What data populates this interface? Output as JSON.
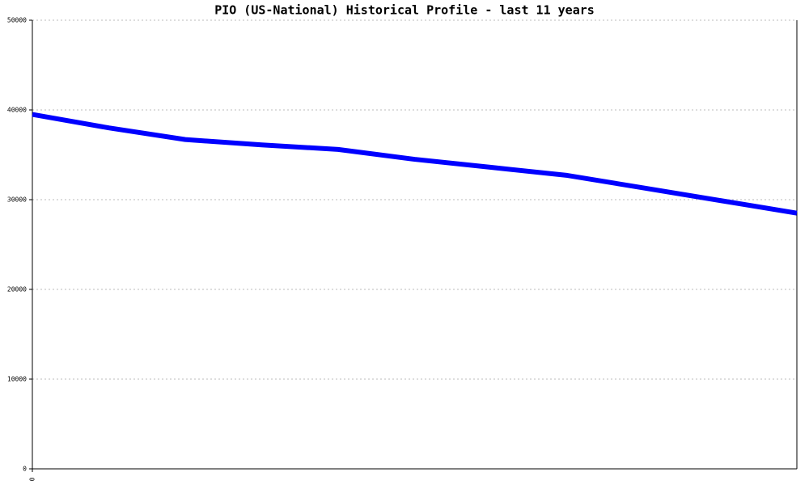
{
  "chart_data": {
    "type": "line",
    "title": "PIO (US-National) Historical Profile - last 11 years",
    "x": [
      0,
      1,
      2,
      3,
      4,
      5,
      6,
      7,
      8,
      9,
      10
    ],
    "xlim": [
      0,
      10
    ],
    "xticks": [
      0
    ],
    "series": [
      {
        "name": "PIO",
        "color": "#0000ff",
        "values": [
          39500,
          38000,
          36700,
          36100,
          35600,
          34500,
          33600,
          32700,
          31300,
          29900,
          28500
        ]
      }
    ],
    "ylim": [
      0,
      50000
    ],
    "yticks": [
      0,
      10000,
      20000,
      30000,
      40000,
      50000
    ],
    "grid": true
  }
}
